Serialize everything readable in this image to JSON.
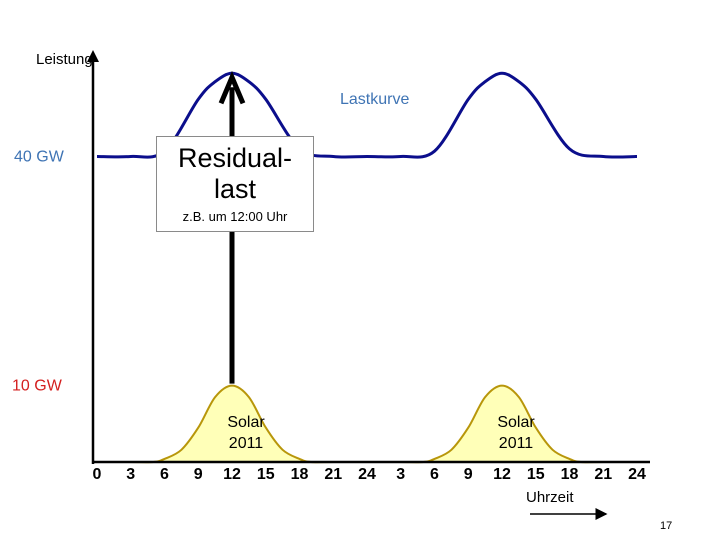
{
  "chart_data": {
    "type": "line",
    "ylabel": "Leistung",
    "xlabel": "Uhrzeit",
    "x_ticks": [
      "0",
      "3",
      "6",
      "9",
      "12",
      "15",
      "18",
      "21",
      "24",
      "3",
      "6",
      "9",
      "12",
      "15",
      "18",
      "21",
      "24"
    ],
    "y_markers": [
      {
        "label": "40 GW",
        "value": 40,
        "color": "#3f74b4"
      },
      {
        "label": "10 GW",
        "value": 10,
        "color": "#d42020"
      }
    ],
    "series": [
      {
        "name": "Lastkurve",
        "color": "#0b0e8c",
        "x": [
          0,
          3,
          6,
          9,
          10.5,
          12,
          13.5,
          15,
          18,
          21,
          24,
          27,
          30,
          33,
          34.5,
          36,
          37.5,
          39,
          42,
          45,
          48
        ],
        "y": [
          40,
          40,
          40.7,
          47.5,
          49.8,
          50.9,
          49.8,
          47.5,
          41,
          40,
          40,
          40,
          40.7,
          47.5,
          49.8,
          50.9,
          49.8,
          47.5,
          41,
          40,
          40
        ]
      },
      {
        "name": "Solar 2011",
        "color": "#b8960a",
        "fill": "#ffffb8",
        "x": [
          0,
          3,
          5,
          6,
          7.5,
          9,
          10.5,
          12,
          13.5,
          15,
          16.5,
          18,
          19,
          21,
          24,
          27,
          29,
          30,
          31.5,
          33,
          34.5,
          36,
          37.5,
          39,
          40.5,
          42,
          43,
          45,
          48
        ],
        "y": [
          0,
          0,
          0,
          0.4,
          1.6,
          4.5,
          8.5,
          10,
          8.5,
          4.5,
          1.6,
          0.4,
          0,
          0,
          0,
          0,
          0,
          0.4,
          1.6,
          4.5,
          8.5,
          10,
          8.5,
          4.5,
          1.6,
          0.4,
          0,
          0,
          0
        ]
      }
    ],
    "annotations": {
      "lastkurve_label": "Lastkurve",
      "solar_labels": [
        {
          "line1": "Solar",
          "line2": "2011",
          "at_x": 12
        },
        {
          "line1": "Solar",
          "line2": "2011",
          "at_x": 36
        }
      ],
      "residual_arrow_x": 12,
      "residual_title_line1": "Residual-",
      "residual_title_line2": "last",
      "residual_note": "z.B. um 12:00 Uhr"
    },
    "xlim": [
      0,
      48
    ],
    "ylim": [
      0,
      55
    ],
    "grid": false,
    "legend": "none"
  },
  "page_number": "17"
}
